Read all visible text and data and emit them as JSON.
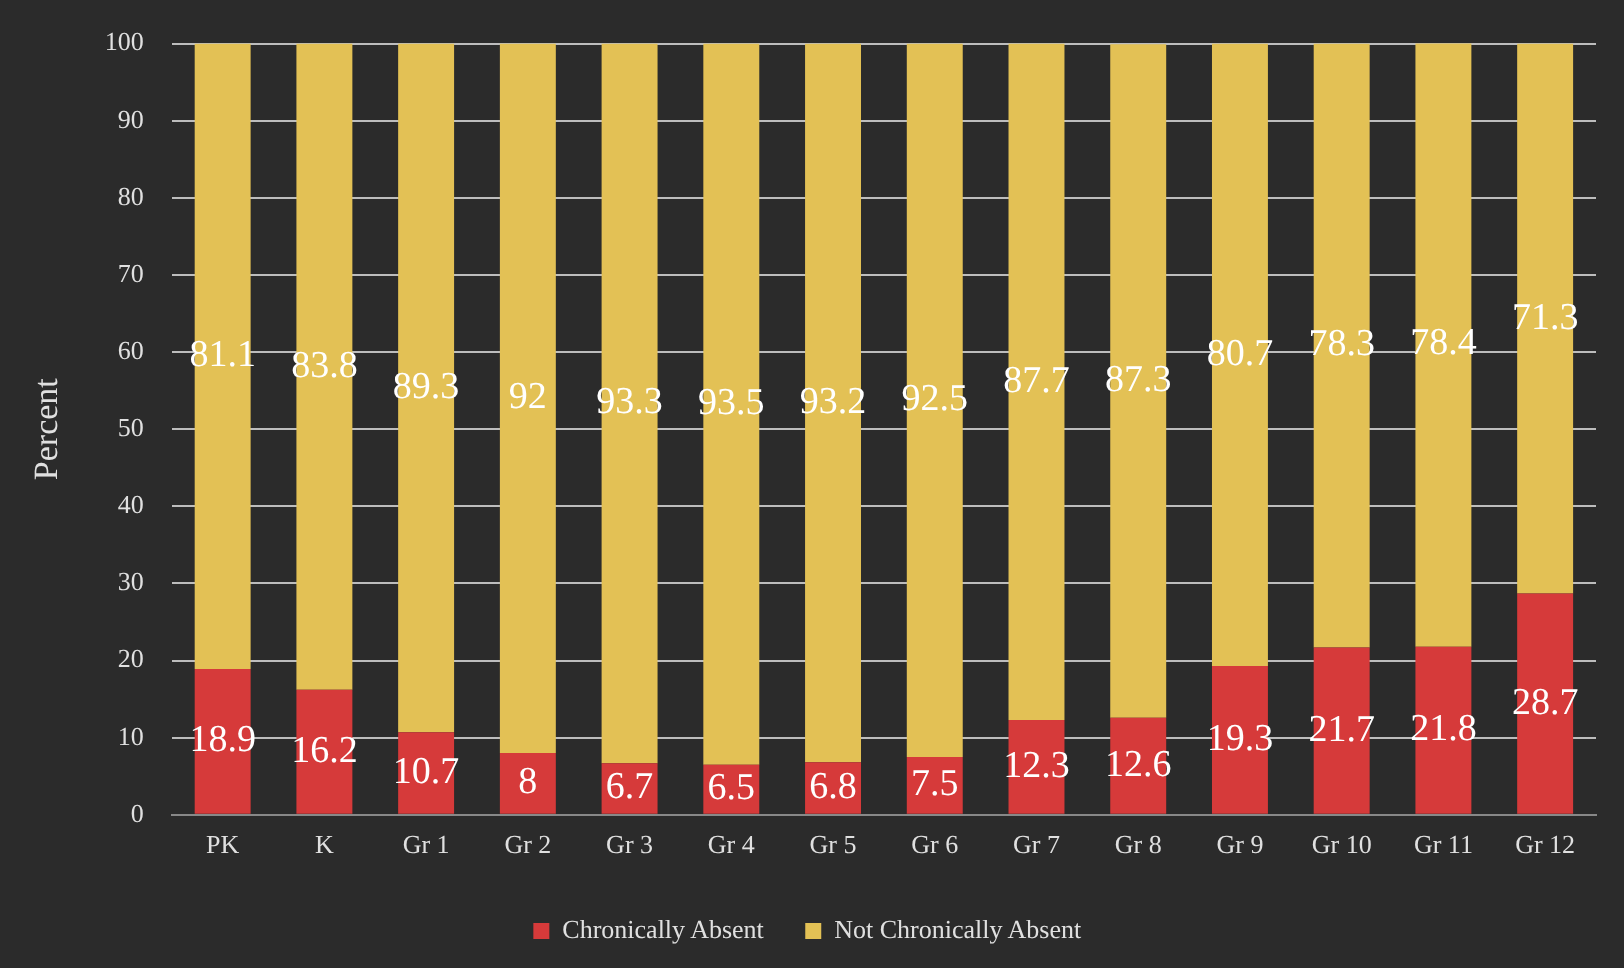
{
  "chart_data": {
    "type": "bar",
    "stacked": true,
    "ylabel": "Percent",
    "categories": [
      "PK",
      "K",
      "Gr 1",
      "Gr 2",
      "Gr 3",
      "Gr 4",
      "Gr 5",
      "Gr 6",
      "Gr 7",
      "Gr 8",
      "Gr 9",
      "Gr 10",
      "Gr 11",
      "Gr 12"
    ],
    "series": [
      {
        "name": "Chronically Absent",
        "color": "#d63a3a",
        "values": [
          18.9,
          16.2,
          10.7,
          8,
          6.7,
          6.5,
          6.8,
          7.5,
          12.3,
          12.6,
          19.3,
          21.7,
          21.8,
          28.7
        ]
      },
      {
        "name": "Not Chronically Absent",
        "color": "#e3c155",
        "values": [
          81.1,
          83.8,
          89.3,
          92,
          93.3,
          93.5,
          93.2,
          92.5,
          87.7,
          87.3,
          80.7,
          78.3,
          78.4,
          71.3
        ]
      }
    ],
    "ylim": [
      0,
      100
    ],
    "yticks": [
      0,
      10,
      20,
      30,
      40,
      50,
      60,
      70,
      80,
      90,
      100
    ],
    "grid": "y",
    "legend": "bottom",
    "data_labels": true
  }
}
